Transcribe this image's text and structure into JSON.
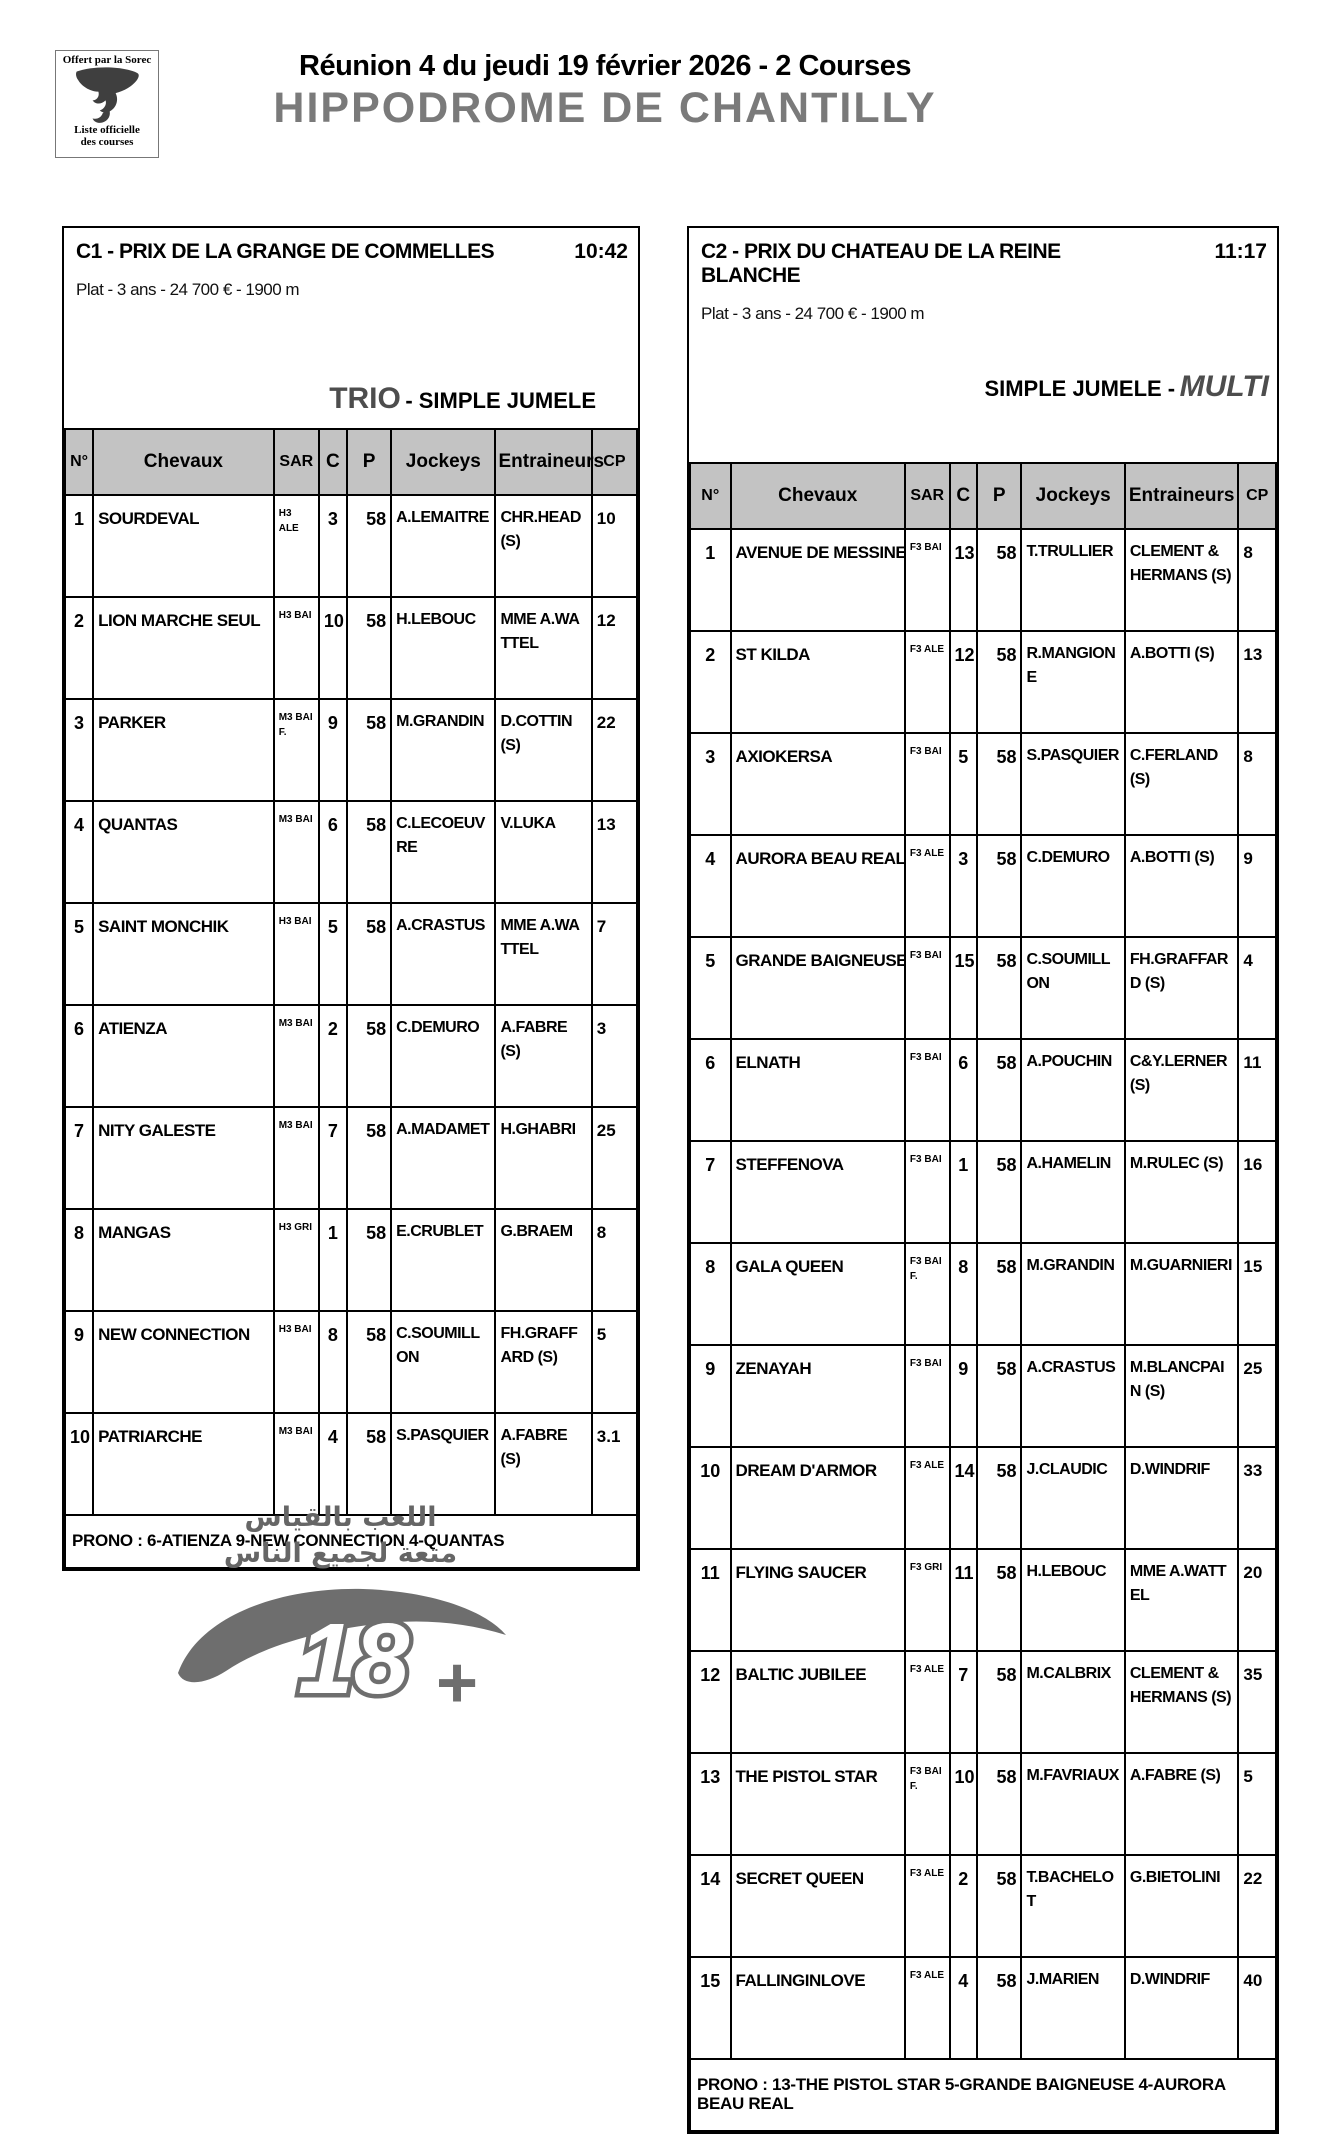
{
  "header": {
    "promo_box": {
      "line_top": "Offert par la Sorec",
      "line_bottom1": "Liste officielle",
      "line_bottom2": "des courses"
    },
    "title": "Réunion 4 du jeudi 19 février 2026 - 2 Courses",
    "venue": "HIPPODROME DE CHANTILLY"
  },
  "races": [
    {
      "code": "C1",
      "title": "C1 - PRIX DE LA GRANGE DE COMMELLES",
      "time": "10:42",
      "conditions": "Plat - 3 ans - 24 700 € - 1900 m",
      "bet_accent": "TRIO",
      "bet_rest": "- SIMPLE JUMELE",
      "columns": [
        "N°",
        "Chevaux",
        "SAR",
        "C",
        "P",
        "Jockeys",
        "Entraineurs",
        "CP"
      ],
      "rows": [
        {
          "num": "1",
          "horse": "SOURDEVAL",
          "sar": "H3 ALE",
          "c": "3",
          "p": "58",
          "jockey": "A.LEMAITRE",
          "trainer": "CHR.HEAD (S)",
          "cp": "10"
        },
        {
          "num": "2",
          "horse": "LION MARCHE SEUL",
          "sar": "H3 BAI",
          "c": "10",
          "p": "58",
          "jockey": "H.LEBOUC",
          "trainer": "MME A.WATTEL",
          "cp": "12"
        },
        {
          "num": "3",
          "horse": "PARKER",
          "sar": "M3 BAI F.",
          "c": "9",
          "p": "58",
          "jockey": "M.GRANDIN",
          "trainer": "D.COTTIN (S)",
          "cp": "22"
        },
        {
          "num": "4",
          "horse": "QUANTAS",
          "sar": "M3 BAI",
          "c": "6",
          "p": "58",
          "jockey": "C.LECOEUVRE",
          "trainer": "V.LUKA",
          "cp": "13"
        },
        {
          "num": "5",
          "horse": "SAINT MONCHIK",
          "sar": "H3 BAI",
          "c": "5",
          "p": "58",
          "jockey": "A.CRASTUS",
          "trainer": "MME A.WATTEL",
          "cp": "7"
        },
        {
          "num": "6",
          "horse": "ATIENZA",
          "sar": "M3 BAI",
          "c": "2",
          "p": "58",
          "jockey": "C.DEMURO",
          "trainer": "A.FABRE (S)",
          "cp": "3"
        },
        {
          "num": "7",
          "horse": "NITY GALESTE",
          "sar": "M3 BAI",
          "c": "7",
          "p": "58",
          "jockey": "A.MADAMET",
          "trainer": "H.GHABRI",
          "cp": "25"
        },
        {
          "num": "8",
          "horse": "MANGAS",
          "sar": "H3 GRI",
          "c": "1",
          "p": "58",
          "jockey": "E.CRUBLET",
          "trainer": "G.BRAEM",
          "cp": "8"
        },
        {
          "num": "9",
          "horse": "NEW CONNECTION",
          "sar": "H3 BAI",
          "c": "8",
          "p": "58",
          "jockey": "C.SOUMILLON",
          "trainer": "FH.GRAFFARD (S)",
          "cp": "5"
        },
        {
          "num": "10",
          "horse": "PATRIARCHE",
          "sar": "M3 BAI",
          "c": "4",
          "p": "58",
          "jockey": "S.PASQUIER",
          "trainer": "A.FABRE (S)",
          "cp": "3.1"
        }
      ],
      "prono": "PRONO : 6-ATIENZA 9-NEW CONNECTION 4-QUANTAS"
    },
    {
      "code": "C2",
      "title": "C2 -  PRIX DU CHATEAU DE LA REINE BLANCHE",
      "time": "11:17",
      "conditions": "Plat - 3 ans - 24 700 € - 1900 m",
      "bet_rest": "SIMPLE JUMELE -",
      "bet_accent": "MULTI",
      "columns": [
        "N°",
        "Chevaux",
        "SAR",
        "C",
        "P",
        "Jockeys",
        "Entraineurs",
        "CP"
      ],
      "rows": [
        {
          "num": "1",
          "horse": "AVENUE DE MESSINE",
          "sar": "F3 BAI",
          "c": "13",
          "p": "58",
          "jockey": "T.TRULLIER",
          "trainer": "CLEMENT & HERMANS (S)",
          "cp": "8"
        },
        {
          "num": "2",
          "horse": "ST KILDA",
          "sar": "F3 ALE",
          "c": "12",
          "p": "58",
          "jockey": "R.MANGIONE",
          "trainer": "A.BOTTI (S)",
          "cp": "13"
        },
        {
          "num": "3",
          "horse": "AXIOKERSA",
          "sar": "F3 BAI",
          "c": "5",
          "p": "58",
          "jockey": "S.PASQUIER",
          "trainer": "C.FERLAND (S)",
          "cp": "8"
        },
        {
          "num": "4",
          "horse": "AURORA BEAU REAL",
          "sar": "F3 ALE",
          "c": "3",
          "p": "58",
          "jockey": "C.DEMURO",
          "trainer": "A.BOTTI (S)",
          "cp": "9"
        },
        {
          "num": "5",
          "horse": "GRANDE BAIGNEUSE",
          "sar": "F3 BAI",
          "c": "15",
          "p": "58",
          "jockey": "C.SOUMILLON",
          "trainer": "FH.GRAFFARD (S)",
          "cp": "4"
        },
        {
          "num": "6",
          "horse": "ELNATH",
          "sar": "F3 BAI",
          "c": "6",
          "p": "58",
          "jockey": "A.POUCHIN",
          "trainer": "C&Y.LERNER (S)",
          "cp": "11"
        },
        {
          "num": "7",
          "horse": "STEFFENOVA",
          "sar": "F3 BAI",
          "c": "1",
          "p": "58",
          "jockey": "A.HAMELIN",
          "trainer": "M.RULEC (S)",
          "cp": "16"
        },
        {
          "num": "8",
          "horse": "GALA QUEEN",
          "sar": "F3 BAI F.",
          "c": "8",
          "p": "58",
          "jockey": "M.GRANDIN",
          "trainer": "M.GUARNIERI",
          "cp": "15"
        },
        {
          "num": "9",
          "horse": "ZENAYAH",
          "sar": "F3 BAI",
          "c": "9",
          "p": "58",
          "jockey": "A.CRASTUS",
          "trainer": "M.BLANCPAIN (S)",
          "cp": "25"
        },
        {
          "num": "10",
          "horse": "DREAM D'ARMOR",
          "sar": "F3 ALE",
          "c": "14",
          "p": "58",
          "jockey": "J.CLAUDIC",
          "trainer": "D.WINDRIF",
          "cp": "33"
        },
        {
          "num": "11",
          "horse": "FLYING SAUCER",
          "sar": "F3 GRI",
          "c": "11",
          "p": "58",
          "jockey": "H.LEBOUC",
          "trainer": "MME A.WATTEL",
          "cp": "20"
        },
        {
          "num": "12",
          "horse": "BALTIC JUBILEE",
          "sar": "F3 ALE",
          "c": "7",
          "p": "58",
          "jockey": "M.CALBRIX",
          "trainer": "CLEMENT & HERMANS (S)",
          "cp": "35"
        },
        {
          "num": "13",
          "horse": "THE PISTOL STAR",
          "sar": "F3 BAI F.",
          "c": "10",
          "p": "58",
          "jockey": "M.FAVRIAUX",
          "trainer": "A.FABRE (S)",
          "cp": "5"
        },
        {
          "num": "14",
          "horse": "SECRET QUEEN",
          "sar": "F3 ALE",
          "c": "2",
          "p": "58",
          "jockey": "T.BACHELOT",
          "trainer": "G.BIETOLINI",
          "cp": "22"
        },
        {
          "num": "15",
          "horse": "FALLINGINLOVE",
          "sar": "F3 ALE",
          "c": "4",
          "p": "58",
          "jockey": "J.MARIEN",
          "trainer": "D.WINDRIF",
          "cp": "40"
        }
      ],
      "prono": "PRONO : 13-THE PISTOL STAR 5-GRANDE BAIGNEUSE 4-AURORA BEAU REAL"
    }
  ],
  "footer_logo": {
    "arabic_line1": "اللعب بالقياس",
    "arabic_line2": "متعة لجميع الناس",
    "age": "18",
    "plus": "+"
  },
  "colors": {
    "table_header_bg": "#c3c3c3",
    "venue_gray": "#7a7a7a",
    "accent_gray": "#4d4d4d"
  }
}
